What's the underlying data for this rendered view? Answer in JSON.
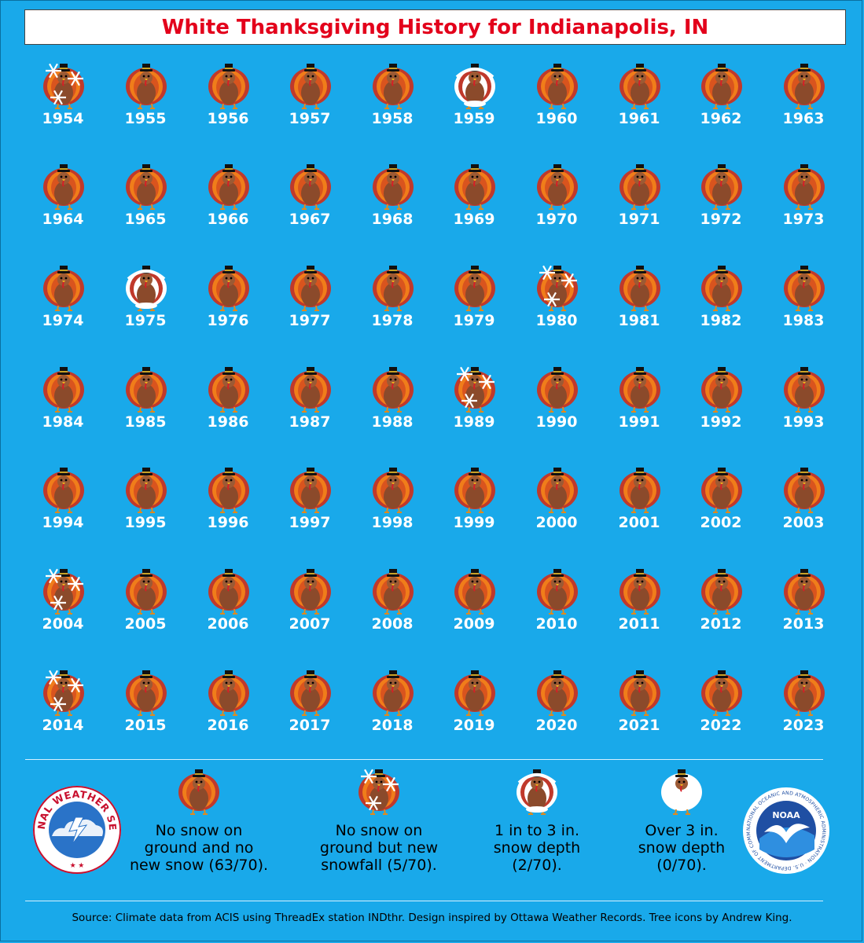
{
  "title": "White Thanksgiving History for Indianapolis, IN",
  "colors": {
    "background": "#19a9ea",
    "title_text": "#e3001b",
    "year_text": "#ffffff"
  },
  "icons": {
    "none": "turkey-icon",
    "new_snow": "turkey-with-snowflakes-icon",
    "depth_1_3": "snow-covered-turkey-icon",
    "depth_over_3": "fully-snow-covered-turkey-icon"
  },
  "years": [
    {
      "year": "1954",
      "cat": "new_snow"
    },
    {
      "year": "1955",
      "cat": "none"
    },
    {
      "year": "1956",
      "cat": "none"
    },
    {
      "year": "1957",
      "cat": "none"
    },
    {
      "year": "1958",
      "cat": "none"
    },
    {
      "year": "1959",
      "cat": "depth_1_3"
    },
    {
      "year": "1960",
      "cat": "none"
    },
    {
      "year": "1961",
      "cat": "none"
    },
    {
      "year": "1962",
      "cat": "none"
    },
    {
      "year": "1963",
      "cat": "none"
    },
    {
      "year": "1964",
      "cat": "none"
    },
    {
      "year": "1965",
      "cat": "none"
    },
    {
      "year": "1966",
      "cat": "none"
    },
    {
      "year": "1967",
      "cat": "none"
    },
    {
      "year": "1968",
      "cat": "none"
    },
    {
      "year": "1969",
      "cat": "none"
    },
    {
      "year": "1970",
      "cat": "none"
    },
    {
      "year": "1971",
      "cat": "none"
    },
    {
      "year": "1972",
      "cat": "none"
    },
    {
      "year": "1973",
      "cat": "none"
    },
    {
      "year": "1974",
      "cat": "none"
    },
    {
      "year": "1975",
      "cat": "depth_1_3"
    },
    {
      "year": "1976",
      "cat": "none"
    },
    {
      "year": "1977",
      "cat": "none"
    },
    {
      "year": "1978",
      "cat": "none"
    },
    {
      "year": "1979",
      "cat": "none"
    },
    {
      "year": "1980",
      "cat": "new_snow"
    },
    {
      "year": "1981",
      "cat": "none"
    },
    {
      "year": "1982",
      "cat": "none"
    },
    {
      "year": "1983",
      "cat": "none"
    },
    {
      "year": "1984",
      "cat": "none"
    },
    {
      "year": "1985",
      "cat": "none"
    },
    {
      "year": "1986",
      "cat": "none"
    },
    {
      "year": "1987",
      "cat": "none"
    },
    {
      "year": "1988",
      "cat": "none"
    },
    {
      "year": "1989",
      "cat": "new_snow"
    },
    {
      "year": "1990",
      "cat": "none"
    },
    {
      "year": "1991",
      "cat": "none"
    },
    {
      "year": "1992",
      "cat": "none"
    },
    {
      "year": "1993",
      "cat": "none"
    },
    {
      "year": "1994",
      "cat": "none"
    },
    {
      "year": "1995",
      "cat": "none"
    },
    {
      "year": "1996",
      "cat": "none"
    },
    {
      "year": "1997",
      "cat": "none"
    },
    {
      "year": "1998",
      "cat": "none"
    },
    {
      "year": "1999",
      "cat": "none"
    },
    {
      "year": "2000",
      "cat": "none"
    },
    {
      "year": "2001",
      "cat": "none"
    },
    {
      "year": "2002",
      "cat": "none"
    },
    {
      "year": "2003",
      "cat": "none"
    },
    {
      "year": "2004",
      "cat": "new_snow"
    },
    {
      "year": "2005",
      "cat": "none"
    },
    {
      "year": "2006",
      "cat": "none"
    },
    {
      "year": "2007",
      "cat": "none"
    },
    {
      "year": "2008",
      "cat": "none"
    },
    {
      "year": "2009",
      "cat": "none"
    },
    {
      "year": "2010",
      "cat": "none"
    },
    {
      "year": "2011",
      "cat": "none"
    },
    {
      "year": "2012",
      "cat": "none"
    },
    {
      "year": "2013",
      "cat": "none"
    },
    {
      "year": "2014",
      "cat": "new_snow"
    },
    {
      "year": "2015",
      "cat": "none"
    },
    {
      "year": "2016",
      "cat": "none"
    },
    {
      "year": "2017",
      "cat": "none"
    },
    {
      "year": "2018",
      "cat": "none"
    },
    {
      "year": "2019",
      "cat": "none"
    },
    {
      "year": "2020",
      "cat": "none"
    },
    {
      "year": "2021",
      "cat": "none"
    },
    {
      "year": "2022",
      "cat": "none"
    },
    {
      "year": "2023",
      "cat": "none"
    }
  ],
  "legend": [
    {
      "cat": "none",
      "lines": [
        "No snow on",
        "ground and no",
        "new snow (63/70)."
      ]
    },
    {
      "cat": "new_snow",
      "lines": [
        "No snow on",
        "ground but new",
        "snowfall (5/70)."
      ]
    },
    {
      "cat": "depth_1_3",
      "lines": [
        "1 in to 3 in.",
        "snow depth",
        "(2/70)."
      ]
    },
    {
      "cat": "depth_over_3",
      "lines": [
        "Over 3 in.",
        "snow depth",
        "(0/70)."
      ]
    }
  ],
  "logos": {
    "nws": {
      "text": "NATIONAL WEATHER SERVICE",
      "icon": "nws-logo-icon"
    },
    "noaa": {
      "text": "NOAA",
      "ring_text": "NATIONAL OCEANIC AND ATMOSPHERIC ADMINISTRATION · U.S. DEPARTMENT OF COMMERCE",
      "icon": "noaa-logo-icon"
    }
  },
  "source": "Source: Climate data from ACIS using ThreadEx station INDthr. Design inspired by Ottawa Weather Records. Tree icons by Andrew King."
}
